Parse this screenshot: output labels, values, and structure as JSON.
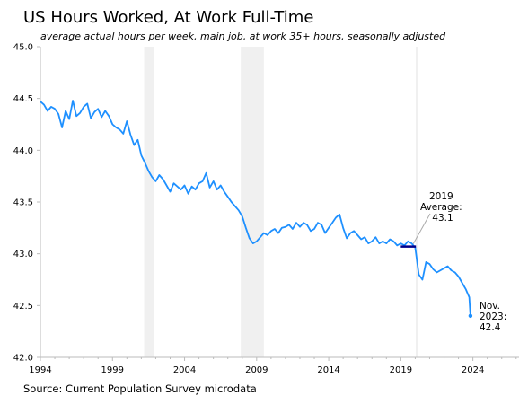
{
  "chart_data": {
    "type": "line",
    "title": "US Hours Worked, At Work Full-Time",
    "subtitle": "average actual hours per week, main job, at work 35+ hours, seasonally adjusted",
    "source": "Source: Current Population Survey microdata",
    "xlabel": "",
    "ylabel": "",
    "xlim": [
      1994,
      2027.2
    ],
    "ylim": [
      42.0,
      45.0
    ],
    "x_ticks": [
      1994,
      1999,
      2004,
      2009,
      2014,
      2019,
      2024
    ],
    "y_ticks": [
      "42.0",
      "42.5",
      "43.0",
      "43.5",
      "44.0",
      "44.5",
      "45.0"
    ],
    "grid": false,
    "legend": "none",
    "recession_shading": [
      [
        2001.2,
        2001.9
      ],
      [
        2007.9,
        2009.5
      ]
    ],
    "vertical_marker_x": 2020.1,
    "series": [
      {
        "color": "#1E90FF",
        "x": [
          1994.0,
          1994.25,
          1994.5,
          1994.75,
          1995.0,
          1995.25,
          1995.5,
          1995.75,
          1996.0,
          1996.25,
          1996.5,
          1996.75,
          1997.0,
          1997.25,
          1997.5,
          1997.75,
          1998.0,
          1998.25,
          1998.5,
          1998.75,
          1999.0,
          1999.25,
          1999.5,
          1999.75,
          2000.0,
          2000.25,
          2000.5,
          2000.75,
          2001.0,
          2001.25,
          2001.5,
          2001.75,
          2002.0,
          2002.25,
          2002.5,
          2002.75,
          2003.0,
          2003.25,
          2003.5,
          2003.75,
          2004.0,
          2004.25,
          2004.5,
          2004.75,
          2005.0,
          2005.25,
          2005.5,
          2005.75,
          2006.0,
          2006.25,
          2006.5,
          2006.75,
          2007.0,
          2007.25,
          2007.5,
          2007.75,
          2008.0,
          2008.25,
          2008.5,
          2008.75,
          2009.0,
          2009.25,
          2009.5,
          2009.75,
          2010.0,
          2010.25,
          2010.5,
          2010.75,
          2011.0,
          2011.25,
          2011.5,
          2011.75,
          2012.0,
          2012.25,
          2012.5,
          2012.75,
          2013.0,
          2013.25,
          2013.5,
          2013.75,
          2014.0,
          2014.25,
          2014.5,
          2014.75,
          2015.0,
          2015.25,
          2015.5,
          2015.75,
          2016.0,
          2016.25,
          2016.5,
          2016.75,
          2017.0,
          2017.25,
          2017.5,
          2017.75,
          2018.0,
          2018.25,
          2018.5,
          2018.75,
          2019.0,
          2019.25,
          2019.5,
          2019.75,
          2020.0,
          2020.25,
          2020.5,
          2020.75,
          2021.0,
          2021.25,
          2021.5,
          2021.75,
          2022.0,
          2022.25,
          2022.5,
          2022.75,
          2023.0,
          2023.25,
          2023.5,
          2023.75,
          2023.83
        ],
        "y": [
          44.47,
          44.44,
          44.38,
          44.42,
          44.4,
          44.35,
          44.22,
          44.38,
          44.3,
          44.48,
          44.33,
          44.36,
          44.42,
          44.45,
          44.31,
          44.37,
          44.4,
          44.32,
          44.38,
          44.33,
          44.25,
          44.22,
          44.2,
          44.16,
          44.28,
          44.15,
          44.05,
          44.1,
          43.95,
          43.88,
          43.8,
          43.74,
          43.7,
          43.76,
          43.72,
          43.66,
          43.6,
          43.68,
          43.65,
          43.62,
          43.66,
          43.58,
          43.65,
          43.62,
          43.68,
          43.7,
          43.78,
          43.64,
          43.7,
          43.62,
          43.66,
          43.6,
          43.55,
          43.5,
          43.46,
          43.42,
          43.36,
          43.25,
          43.15,
          43.1,
          43.12,
          43.16,
          43.2,
          43.18,
          43.22,
          43.24,
          43.2,
          43.25,
          43.26,
          43.28,
          43.24,
          43.3,
          43.26,
          43.3,
          43.28,
          43.22,
          43.24,
          43.3,
          43.28,
          43.2,
          43.25,
          43.3,
          43.35,
          43.38,
          43.25,
          43.15,
          43.2,
          43.22,
          43.18,
          43.14,
          43.16,
          43.1,
          43.12,
          43.16,
          43.1,
          43.12,
          43.1,
          43.14,
          43.12,
          43.08,
          43.1,
          43.08,
          43.12,
          43.1,
          43.06,
          42.8,
          42.75,
          42.92,
          42.9,
          42.85,
          42.82,
          42.84,
          42.86,
          42.88,
          42.84,
          42.82,
          42.78,
          42.72,
          42.66,
          42.58,
          42.4
        ]
      }
    ],
    "reference_line": {
      "x": [
        2019.0,
        2020.05
      ],
      "y": 43.07,
      "color": "#00008B"
    },
    "annotations": [
      {
        "lines": [
          "2019",
          "Average:",
          "43.1"
        ]
      },
      {
        "lines": [
          "Nov.",
          "2023:",
          "42.4"
        ]
      }
    ]
  }
}
